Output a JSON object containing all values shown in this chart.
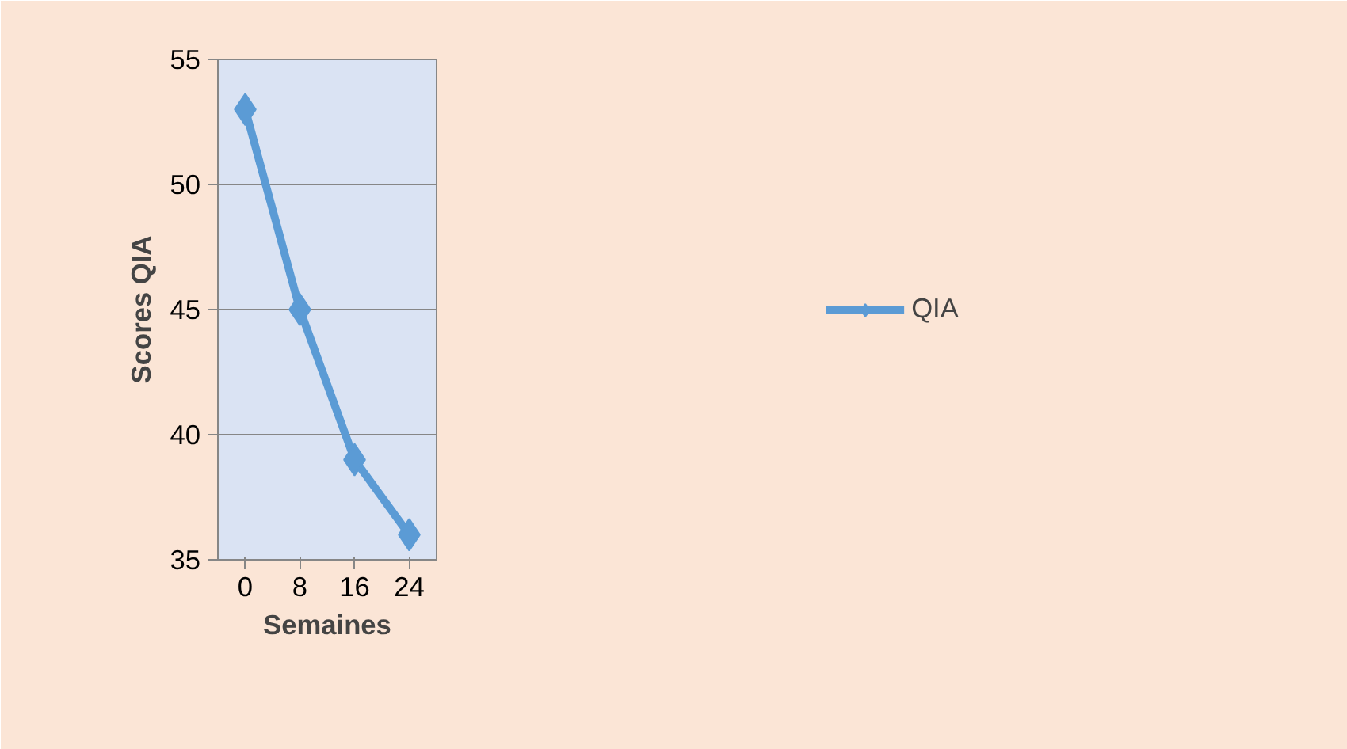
{
  "chart_data": {
    "type": "line",
    "xlabel": "Semaines",
    "ylabel": "Scores QIA",
    "categories": [
      "0",
      "8",
      "16",
      "24"
    ],
    "series": [
      {
        "name": "QIA",
        "color": "#5b9bd5",
        "values": [
          53,
          45,
          39,
          36
        ]
      }
    ],
    "ylim": [
      35,
      55
    ],
    "yticks": [
      35,
      40,
      45,
      50,
      55
    ],
    "grid": "y",
    "legend": "right",
    "marker": "diamond",
    "line_style": "solid"
  }
}
